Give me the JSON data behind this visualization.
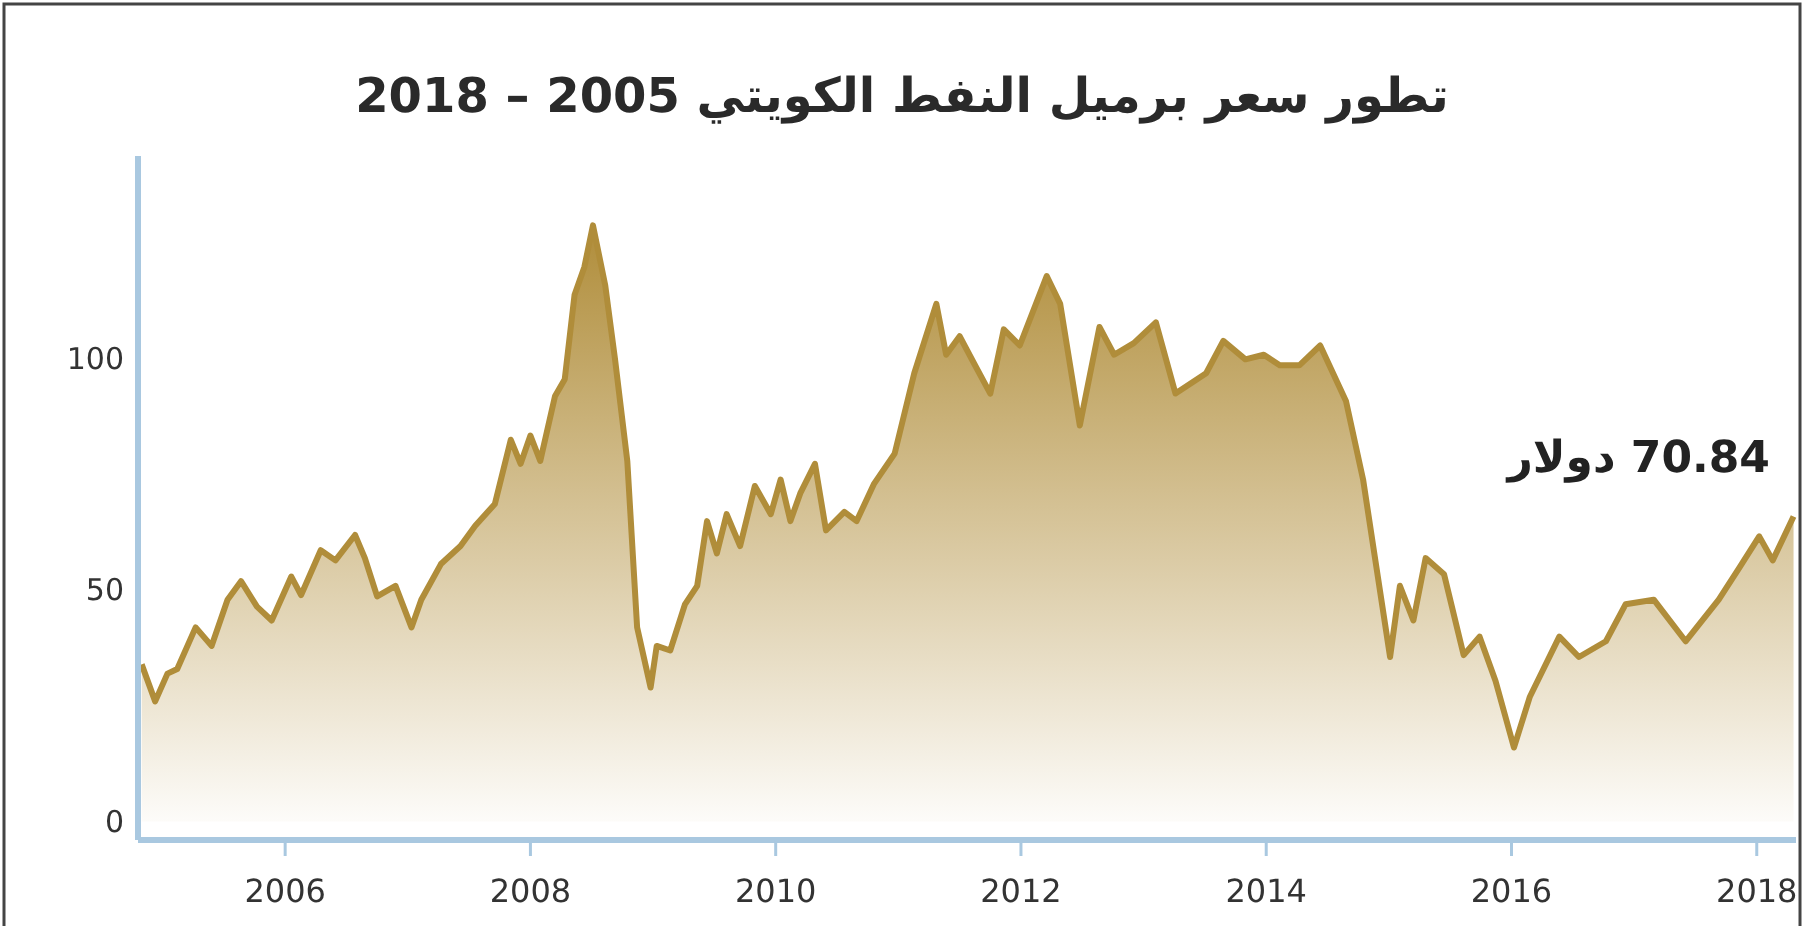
{
  "chart_data": {
    "type": "area",
    "title": "تطور سعر برميل النفط الكويتي 2005 – 2018",
    "x": [
      2004.83,
      2004.94,
      2005.04,
      2005.12,
      2005.27,
      2005.4,
      2005.53,
      2005.64,
      2005.77,
      2005.89,
      2006.05,
      2006.13,
      2006.29,
      2006.41,
      2006.57,
      2006.65,
      2006.75,
      2006.9,
      2007.03,
      2007.11,
      2007.27,
      2007.43,
      2007.55,
      2007.71,
      2007.84,
      2007.92,
      2008.0,
      2008.08,
      2008.2,
      2008.28,
      2008.36,
      2008.44,
      2008.51,
      2008.61,
      2008.69,
      2008.79,
      2008.87,
      2008.98,
      2009.03,
      2009.14,
      2009.26,
      2009.36,
      2009.44,
      2009.52,
      2009.6,
      2009.71,
      2009.83,
      2009.96,
      2010.04,
      2010.12,
      2010.2,
      2010.32,
      2010.41,
      2010.56,
      2010.66,
      2010.8,
      2010.97,
      2011.13,
      2011.31,
      2011.39,
      2011.5,
      2011.62,
      2011.75,
      2011.86,
      2011.99,
      2012.21,
      2012.32,
      2012.48,
      2012.64,
      2012.76,
      2012.92,
      2013.1,
      2013.26,
      2013.51,
      2013.65,
      2013.83,
      2013.98,
      2014.11,
      2014.27,
      2014.44,
      2014.65,
      2014.79,
      2014.89,
      2015.01,
      2015.09,
      2015.2,
      2015.3,
      2015.45,
      2015.61,
      2015.74,
      2015.87,
      2016.02,
      2016.15,
      2016.39,
      2016.55,
      2016.77,
      2016.93,
      2017.16,
      2017.42,
      2017.69,
      2017.86,
      2018.02,
      2018.13,
      2018.3
    ],
    "values": [
      34,
      26,
      32,
      33,
      42,
      38,
      48,
      52,
      46.5,
      43.5,
      53,
      49,
      58.7,
      56.5,
      62,
      57,
      48.7,
      51,
      42,
      48,
      55.7,
      59.6,
      64,
      68.7,
      82.6,
      77.4,
      83.5,
      78,
      92,
      95.7,
      114,
      120,
      129,
      116,
      100,
      78,
      42,
      29,
      38,
      37,
      47,
      51,
      65,
      58,
      66.5,
      59.6,
      72.6,
      66.5,
      74,
      65,
      71,
      77.4,
      63,
      67,
      65,
      73,
      79.6,
      97,
      112,
      101,
      105,
      99,
      92.6,
      106.5,
      103,
      118,
      112,
      85.7,
      107,
      101,
      103.5,
      108,
      92.6,
      97,
      104,
      100,
      101,
      98.7,
      98.7,
      103,
      91,
      74,
      56.5,
      35.6,
      51,
      43.5,
      57,
      53.5,
      36,
      40,
      30.4,
      16,
      27,
      40,
      35.6,
      39,
      47,
      48,
      39,
      48,
      55,
      61.7,
      56.5,
      66
    ],
    "color": "#b08d3a",
    "xlim": [
      2004.8,
      2018.32
    ],
    "ylim": [
      -4,
      144
    ],
    "xticks": [
      2006,
      2008,
      2010,
      2012,
      2014,
      2016,
      2018
    ],
    "yticks": [
      0,
      50,
      100
    ],
    "annotations": [
      "70.84 دولار"
    ]
  }
}
